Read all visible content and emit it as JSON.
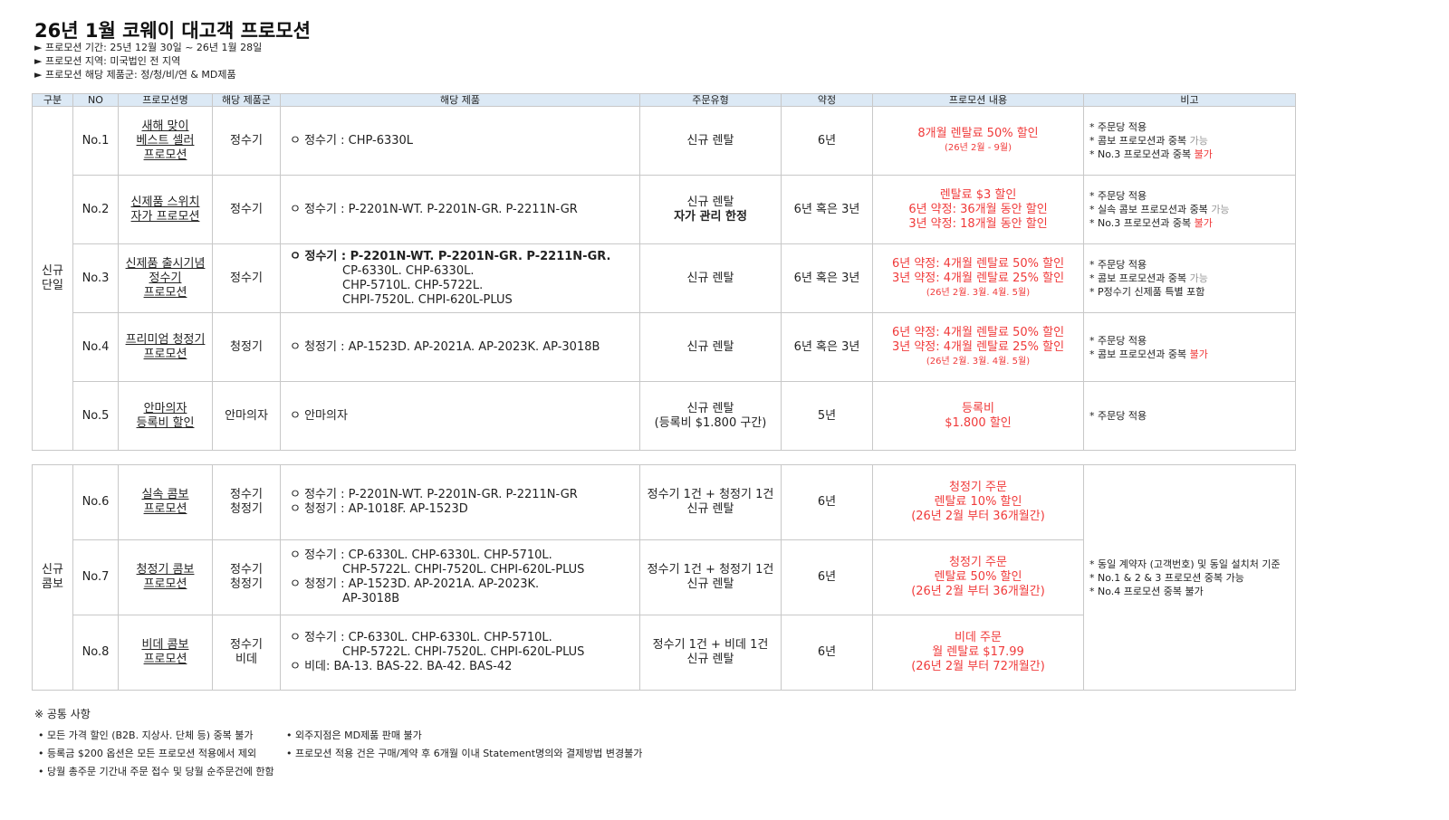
{
  "title": "26년 1월 코웨이 대고객 프로모션",
  "meta": [
    "► 프로모션 기간:  25년 12월 30일 ~ 26년 1월 28일",
    "► 프로모션 지역:  미국법인 전 지역",
    "► 프로모션 해당 제품군: 정/청/비/연 & MD제품"
  ],
  "headers": [
    "구분",
    "NO",
    "프로모션명",
    "해당 제품군",
    "해당 제품",
    "주문유형",
    "약정",
    "프로모션 내용",
    "비고"
  ],
  "groups": [
    "신규\n단일",
    "신규\n콤보"
  ],
  "rows": [
    {
      "no": "No.1",
      "name": "새해 맞이\n베스트 셀러\n프로모션",
      "cat": "정수기",
      "prod": [
        "ㅇ 정수기 :  CHP-6330L"
      ],
      "order": "신규 렌탈",
      "order2": "",
      "term": "6년",
      "promo": "8개월 렌탈료 50% 할인",
      "promo_small": "(26년 2월 - 9월)",
      "notes": [
        [
          "* 주문당 적용",
          ""
        ],
        [
          "* 콤보 프로모션과 중복 ",
          "가능"
        ],
        [
          "* No.3 프로모션과 중복 ",
          "불가"
        ]
      ]
    },
    {
      "no": "No.2",
      "name": "신제품 스위치\n자가 프로모션",
      "cat": "정수기",
      "prod": [
        "ㅇ 정수기 : P-2201N-WT. P-2201N-GR. P-2211N-GR"
      ],
      "order": "신규 렌탈",
      "order2": "자가 관리 한정",
      "term": "6년 혹은 3년",
      "promo": "렌탈료 $3 할인\n6년 약정: 36개월 동안 할인\n3년 약정: 18개월 동안 할인",
      "promo_small": "",
      "notes": [
        [
          "* 주문당 적용",
          ""
        ],
        [
          "* 실속 콤보 프로모션과 중복 ",
          "가능"
        ],
        [
          "* No.3 프로모션과 중복 ",
          "불가"
        ]
      ]
    },
    {
      "no": "No.3",
      "name": "신제품 출시기념\n정수기\n프로모션",
      "cat": "정수기",
      "prod": [
        "ㅇ 정수기 : P-2201N-WT. P-2201N-GR. P-2211N-GR.",
        "CP-6330L. CHP-6330L.",
        "CHP-5710L. CHP-5722L.",
        "CHPI-7520L.  CHPI-620L-PLUS"
      ],
      "order": "신규 렌탈",
      "order2": "",
      "term": "6년 혹은 3년",
      "promo": "6년 약정: 4개월 렌탈료 50% 할인\n3년 약정: 4개월 렌탈료 25% 할인",
      "promo_small": "(26년 2월. 3월. 4월. 5월)",
      "notes": [
        [
          "* 주문당 적용",
          ""
        ],
        [
          "* 콤보 프로모션과 중복 ",
          "가능"
        ],
        [
          "* P정수기 신제품 특별 포함",
          ""
        ]
      ]
    },
    {
      "no": "No.4",
      "name": "프리미엄 청정기\n프로모션",
      "cat": "청정기",
      "prod": [
        "ㅇ 청정기 : AP-1523D. AP-2021A. AP-2023K. AP-3018B"
      ],
      "order": "신규 렌탈",
      "order2": "",
      "term": "6년 혹은 3년",
      "promo": "6년 약정: 4개월 렌탈료 50% 할인\n3년 약정: 4개월 렌탈료 25% 할인",
      "promo_small": "(26년 2월. 3월. 4월. 5월)",
      "notes": [
        [
          "* 주문당 적용",
          ""
        ],
        [
          "* 콤보 프로모션과 중복 ",
          "불가"
        ]
      ]
    },
    {
      "no": "No.5",
      "name": "안마의자\n등록비 할인",
      "cat": "안마의자",
      "prod": [
        "ㅇ 안마의자"
      ],
      "order": "신규 렌탈\n(등록비 $1.800 구간)",
      "order2": "",
      "term": "5년",
      "promo": "등록비\n$1.800 할인",
      "promo_small": "",
      "notes": [
        [
          "* 주문당 적용",
          ""
        ]
      ]
    },
    {
      "no": "No.6",
      "name": "실속 콤보\n프로모션",
      "cat": "정수기\n청정기",
      "prod": [
        "ㅇ 정수기 :  P-2201N-WT. P-2201N-GR. P-2211N-GR",
        "ㅇ 청정기 :  AP-1018F. AP-1523D"
      ],
      "order": "정수기 1건 + 청정기 1건\n신규 렌탈",
      "order2": "",
      "term": "6년",
      "promo": "청정기 주문\n렌탈료 10% 할인\n(26년 2월 부터 36개월간)",
      "promo_small": ""
    },
    {
      "no": "No.7",
      "name": "청정기 콤보\n프로모션",
      "cat": "정수기\n청정기",
      "prod": [
        "ㅇ 정수기 : CP-6330L. CHP-6330L. CHP-5710L.",
        "CHP-5722L. CHPI-7520L.  CHPI-620L-PLUS",
        "ㅇ 청정기 : AP-1523D. AP-2021A. AP-2023K.",
        "AP-3018B"
      ],
      "order": "정수기 1건 + 청정기 1건\n신규 렌탈",
      "order2": "",
      "term": "6년",
      "promo": "청정기 주문\n렌탈료 50% 할인\n(26년 2월 부터 36개월간)",
      "promo_small": ""
    },
    {
      "no": "No.8",
      "name": "비데 콤보\n프로모션",
      "cat": "정수기\n비데",
      "prod": [
        "ㅇ 정수기 : CP-6330L. CHP-6330L. CHP-5710L.",
        "CHP-5722L. CHPI-7520L.  CHPI-620L-PLUS",
        "ㅇ 비데: BA-13. BAS-22. BA-42. BAS-42"
      ],
      "order": "정수기 1건 + 비데 1건\n신규 렌탈",
      "order2": "",
      "term": "6년",
      "promo": "비데 주문\n월 렌탈료 $17.99\n(26년 2월 부터 72개월간)",
      "promo_small": ""
    }
  ],
  "combo_notes": [
    "* 동일 계약자 (고객번호) 및 동일 설치처 기준",
    "* No.1 & 2 & 3 프로모션 중복 가능",
    "* No.4 프로모션 중복 불가"
  ],
  "common_title": "※ 공통 사항",
  "common_left": [
    "• 모든 가격 할인 (B2B. 지상사. 단체 등) 중복 불가",
    "• 등록금 $200 옵션은 모든 프로모션 적용에서 제외",
    "• 당월 총주문 기간내 주문 접수 및 당월 순주문건에 한함"
  ],
  "common_right": [
    "• 외주지점은 MD제품 판매 불가",
    "• 프로모션 적용 건은 구매/계약 후 6개월 이내 Statement명의와 결제방법 변경불가"
  ],
  "colors": {
    "header_bg": "#dce9f5",
    "accent_red": "#f03a3a",
    "muted": "#999999"
  }
}
